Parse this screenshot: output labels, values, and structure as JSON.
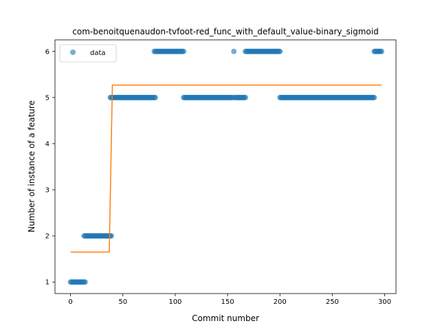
{
  "chart_data": {
    "type": "scatter",
    "title": "com-benoitquenaudon-tvfoot-red_func_with_default_value-binary_sigmoid",
    "xlabel": "Commit number",
    "ylabel": "Number of instance of a feature",
    "xlim": [
      -14.8,
      310.8
    ],
    "ylim": [
      0.75,
      6.25
    ],
    "xticks": [
      0,
      50,
      100,
      150,
      200,
      250,
      300
    ],
    "yticks": [
      1,
      2,
      3,
      4,
      5,
      6
    ],
    "legend": {
      "placement": "top-left",
      "entries": [
        "data"
      ]
    },
    "colors": {
      "data": "#1f77b4",
      "fit": "#ff7f0e"
    },
    "data_segments": [
      {
        "from": 0,
        "to": 14,
        "y": 1
      },
      {
        "from": 13,
        "to": 39,
        "y": 2
      },
      {
        "from": 38,
        "to": 81,
        "y": 5
      },
      {
        "from": 80,
        "to": 108,
        "y": 6
      },
      {
        "from": 108,
        "to": 155,
        "y": 5
      },
      {
        "from": 156,
        "to": 156,
        "y": 6
      },
      {
        "from": 157,
        "to": 167,
        "y": 5
      },
      {
        "from": 167,
        "to": 200,
        "y": 6
      },
      {
        "from": 200,
        "to": 290,
        "y": 5
      },
      {
        "from": 290,
        "to": 297,
        "y": 6
      }
    ],
    "fit": {
      "low": 1.65,
      "high": 5.27,
      "x_start": 0,
      "x_end": 297,
      "step_start": 37,
      "step_end": 40
    }
  }
}
